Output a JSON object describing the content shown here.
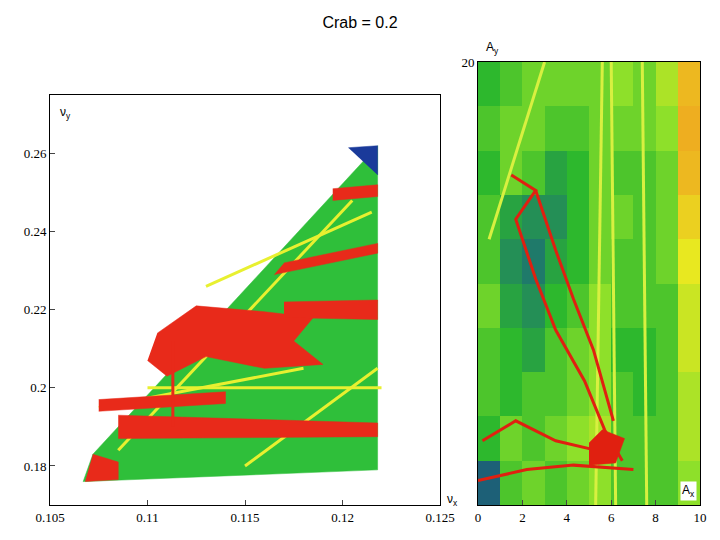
{
  "title": "Crab = 0.2",
  "chart_data": [
    {
      "type": "scatter",
      "xlabel": "νx",
      "ylabel": "νy",
      "xlim": [
        0.105,
        0.125
      ],
      "xticks": [
        0.105,
        0.11,
        0.115,
        0.12,
        0.125
      ],
      "ylim": [
        0.17,
        0.275
      ],
      "yticks": [
        0.18,
        0.2,
        0.22,
        0.24,
        0.26
      ],
      "series": [
        {
          "type": "area",
          "color": "#2fbf3a",
          "x": [
            0.1067,
            0.1072,
            0.1218,
            0.1218,
            0.1067
          ],
          "y": [
            0.176,
            0.183,
            0.262,
            0.179,
            0.176
          ]
        },
        {
          "type": "area",
          "color": "#1a3a9a",
          "x": [
            0.1203,
            0.1218,
            0.1218
          ],
          "y": [
            0.2615,
            0.262,
            0.2545
          ]
        },
        {
          "type": "line",
          "color": "#e8f030",
          "x": [
            0.113,
            0.1215
          ],
          "y": [
            0.226,
            0.245
          ]
        },
        {
          "type": "line",
          "color": "#e8f030",
          "x": [
            0.1075,
            0.118
          ],
          "y": [
            0.195,
            0.205
          ]
        },
        {
          "type": "line",
          "color": "#e8f030",
          "x": [
            0.115,
            0.1218
          ],
          "y": [
            0.18,
            0.205
          ]
        },
        {
          "type": "line",
          "color": "#e8f030",
          "x": [
            0.11,
            0.122
          ],
          "y": [
            0.2,
            0.2
          ]
        },
        {
          "type": "line",
          "color": "#e8f030",
          "x": [
            0.1085,
            0.1205
          ],
          "y": [
            0.184,
            0.248
          ]
        },
        {
          "type": "area",
          "color": "#e82a1a",
          "x": [
            0.1105,
            0.1125,
            0.116,
            0.1185,
            0.1175,
            0.119,
            0.116,
            0.113,
            0.111,
            0.11
          ],
          "y": [
            0.214,
            0.221,
            0.2195,
            0.218,
            0.212,
            0.206,
            0.205,
            0.208,
            0.203,
            0.207
          ]
        },
        {
          "type": "area",
          "color": "#e82a1a",
          "x": [
            0.117,
            0.1218,
            0.1218,
            0.117
          ],
          "y": [
            0.218,
            0.2175,
            0.2225,
            0.222
          ]
        },
        {
          "type": "area",
          "color": "#e82a1a",
          "x": [
            0.1085,
            0.1218,
            0.1218,
            0.1085
          ],
          "y": [
            0.187,
            0.1875,
            0.191,
            0.193
          ]
        },
        {
          "type": "area",
          "color": "#e82a1a",
          "x": [
            0.1075,
            0.114,
            0.114,
            0.1075
          ],
          "y": [
            0.194,
            0.196,
            0.199,
            0.197
          ]
        },
        {
          "type": "area",
          "color": "#e82a1a",
          "x": [
            0.1068,
            0.1085,
            0.1085,
            0.1072
          ],
          "y": [
            0.176,
            0.1765,
            0.181,
            0.183
          ]
        },
        {
          "type": "area",
          "color": "#e82a1a",
          "x": [
            0.1165,
            0.1218,
            0.1218,
            0.117
          ],
          "y": [
            0.229,
            0.2345,
            0.237,
            0.232
          ]
        },
        {
          "type": "area",
          "color": "#e82a1a",
          "x": [
            0.1195,
            0.1218,
            0.1218,
            0.1195
          ],
          "y": [
            0.248,
            0.249,
            0.252,
            0.251
          ]
        },
        {
          "type": "line",
          "color": "#e82a1a",
          "x": [
            0.1113,
            0.1113
          ],
          "y": [
            0.19,
            0.212
          ]
        }
      ]
    },
    {
      "type": "heatmap",
      "xlabel": "Ax",
      "ylabel": "Ay",
      "xlim": [
        0,
        10
      ],
      "xticks": [
        0,
        2,
        4,
        6,
        8,
        10
      ],
      "ylim": [
        0,
        20
      ],
      "yticks": [
        20
      ],
      "x": [
        0.5,
        1.5,
        2.5,
        3.5,
        4.5,
        5.5,
        6.5,
        7.5,
        8.5,
        9.5
      ],
      "y": [
        1,
        3,
        5,
        7,
        9,
        11,
        13,
        15,
        17,
        19
      ],
      "zlim": [
        0,
        1
      ],
      "cells": [
        [
          0.15,
          0.45,
          0.5,
          0.45,
          0.5,
          0.55,
          0.45,
          0.45,
          0.45,
          0.55
        ],
        [
          0.4,
          0.5,
          0.45,
          0.5,
          0.55,
          0.6,
          0.45,
          0.45,
          0.45,
          0.6
        ],
        [
          0.45,
          0.4,
          0.45,
          0.45,
          0.5,
          0.55,
          0.45,
          0.4,
          0.45,
          0.6
        ],
        [
          0.45,
          0.4,
          0.35,
          0.45,
          0.5,
          0.55,
          0.4,
          0.4,
          0.45,
          0.65
        ],
        [
          0.5,
          0.35,
          0.3,
          0.4,
          0.45,
          0.55,
          0.45,
          0.45,
          0.45,
          0.65
        ],
        [
          0.45,
          0.3,
          0.25,
          0.35,
          0.4,
          0.5,
          0.45,
          0.45,
          0.5,
          0.7
        ],
        [
          0.45,
          0.35,
          0.3,
          0.3,
          0.4,
          0.5,
          0.5,
          0.45,
          0.5,
          0.75
        ],
        [
          0.4,
          0.5,
          0.45,
          0.35,
          0.4,
          0.5,
          0.45,
          0.45,
          0.5,
          0.8
        ],
        [
          0.45,
          0.5,
          0.5,
          0.45,
          0.45,
          0.5,
          0.5,
          0.5,
          0.55,
          0.82
        ],
        [
          0.4,
          0.45,
          0.5,
          0.5,
          0.5,
          0.5,
          0.55,
          0.5,
          0.6,
          0.8
        ]
      ],
      "series": [
        {
          "type": "line",
          "color": "#d8f040",
          "x": [
            5.3,
            5.6
          ],
          "y": [
            0,
            20
          ]
        },
        {
          "type": "line",
          "color": "#d8f040",
          "x": [
            6.2,
            6.0
          ],
          "y": [
            0,
            20
          ]
        },
        {
          "type": "line",
          "color": "#d8f040",
          "x": [
            7.6,
            7.4
          ],
          "y": [
            0,
            20
          ]
        },
        {
          "type": "line",
          "color": "#d8f040",
          "x": [
            0.5,
            3
          ],
          "y": [
            12,
            20
          ]
        },
        {
          "type": "line",
          "color": "#e02010",
          "x": [
            1.5,
            2.6,
            1.7,
            2.6,
            3.5,
            4.8,
            5.7,
            6.5
          ],
          "y": [
            14.9,
            14.2,
            12.9,
            10.2,
            7.9,
            5.6,
            3.4,
            2.0
          ]
        },
        {
          "type": "line",
          "color": "#e02010",
          "x": [
            2.6,
            3.5,
            4.3,
            5.2,
            6.1
          ],
          "y": [
            14.2,
            11.5,
            9.3,
            7.0,
            3.8
          ]
        },
        {
          "type": "line",
          "color": "#e02010",
          "x": [
            0.2,
            1.7,
            3.5,
            5.2
          ],
          "y": [
            2.9,
            3.8,
            2.9,
            2.5
          ]
        },
        {
          "type": "line",
          "color": "#e02010",
          "x": [
            0,
            2.2,
            4.3,
            7
          ],
          "y": [
            1.1,
            1.6,
            1.8,
            1.6
          ]
        },
        {
          "type": "area",
          "color": "#e02010",
          "x": [
            5,
            6.2,
            6.6,
            5.6,
            5
          ],
          "y": [
            1.8,
            1.9,
            3,
            3.4,
            2.8
          ]
        }
      ]
    }
  ]
}
